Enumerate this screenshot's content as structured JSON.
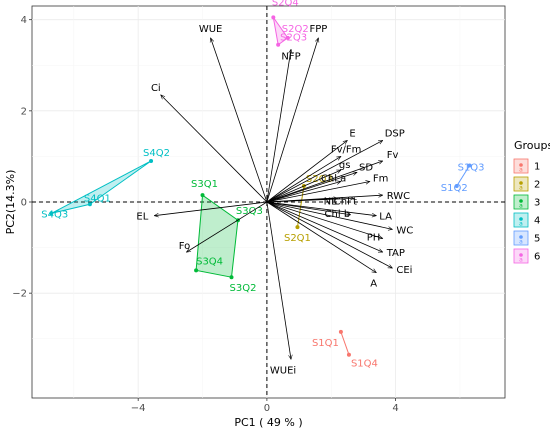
{
  "chart_data": {
    "type": "scatter",
    "subtype": "pca-biplot",
    "xlabel": "PC1 ( 49 % )",
    "ylabel": "PC2(14.3%)",
    "xlim": [
      -7.3,
      7.4
    ],
    "ylim": [
      -4.3,
      4.3
    ],
    "xticks": [
      -4,
      0,
      4
    ],
    "yticks": [
      -2,
      0,
      2,
      4
    ],
    "grid": true,
    "reference_lines": {
      "x": 0,
      "y": 0,
      "style": "dashed"
    },
    "legend": {
      "title": "Groups",
      "position": "right",
      "entries": [
        "1",
        "2",
        "3",
        "4",
        "5",
        "6"
      ]
    },
    "groups": [
      {
        "name": "1",
        "color": "#F8766D",
        "points": [
          {
            "label": "S1Q1",
            "x": 2.3,
            "y": -2.85
          },
          {
            "label": "S1Q4",
            "x": 2.55,
            "y": -3.35
          }
        ]
      },
      {
        "name": "2",
        "color": "#B79F00",
        "points": [
          {
            "label": "S2Q1",
            "x": 0.95,
            "y": -0.55
          },
          {
            "label": "S2Q3",
            "x": 1.15,
            "y": 0.35
          }
        ]
      },
      {
        "name": "3",
        "color": "#00BA38",
        "points": [
          {
            "label": "S3Q1",
            "x": -2.0,
            "y": 0.15
          },
          {
            "label": "S3Q3",
            "x": -0.9,
            "y": -0.4
          },
          {
            "label": "S3Q4",
            "x": -2.2,
            "y": -1.5
          },
          {
            "label": "S3Q2",
            "x": -1.1,
            "y": -1.65
          }
        ]
      },
      {
        "name": "4",
        "color": "#00BFC4",
        "points": [
          {
            "label": "S4Q2",
            "x": -3.6,
            "y": 0.9
          },
          {
            "label": "S4Q1",
            "x": -5.5,
            "y": -0.05
          },
          {
            "label": "S4Q3",
            "x": -6.7,
            "y": -0.25
          }
        ]
      },
      {
        "name": "5",
        "color": "#619CFF",
        "points": [
          {
            "label": "S1Q3",
            "x": 6.3,
            "y": 0.8
          },
          {
            "label": "S1Q2",
            "x": 5.9,
            "y": 0.35
          }
        ]
      },
      {
        "name": "6",
        "color": "#F564E3",
        "points": [
          {
            "label": "S2Q4",
            "x": 0.2,
            "y": 4.05
          },
          {
            "label": "S2Q2",
            "x": 0.65,
            "y": 3.6
          },
          {
            "label": "S2Q3",
            "x": 0.35,
            "y": 3.45
          }
        ]
      }
    ],
    "variables": [
      {
        "label": "WUE",
        "x": -1.75,
        "y": 3.6
      },
      {
        "label": "FPP",
        "x": 1.6,
        "y": 3.6
      },
      {
        "label": "NFP",
        "x": 0.75,
        "y": 3.35
      },
      {
        "label": "Ci",
        "x": -3.3,
        "y": 2.35
      },
      {
        "label": "EL",
        "x": -3.5,
        "y": -0.3
      },
      {
        "label": "Fo",
        "x": -2.5,
        "y": -1.1
      },
      {
        "label": "WUEi",
        "x": 0.75,
        "y": -3.45
      },
      {
        "label": "E",
        "x": 2.5,
        "y": 1.35
      },
      {
        "label": "DSP",
        "x": 3.6,
        "y": 1.35
      },
      {
        "label": "Fv/Fm",
        "x": 2.3,
        "y": 1.0
      },
      {
        "label": "Fv",
        "x": 3.6,
        "y": 0.9
      },
      {
        "label": "gs",
        "x": 2.3,
        "y": 0.7
      },
      {
        "label": "SD",
        "x": 2.8,
        "y": 0.65
      },
      {
        "label": "Fm",
        "x": 3.2,
        "y": 0.45
      },
      {
        "label": "Chl a",
        "x": 2.3,
        "y": 0.45
      },
      {
        "label": "RWC",
        "x": 3.6,
        "y": 0.15
      },
      {
        "label": "NL",
        "x": 2.2,
        "y": 0.08
      },
      {
        "label": "Chl t",
        "x": 2.7,
        "y": 0.08
      },
      {
        "label": "LA",
        "x": 3.4,
        "y": -0.3
      },
      {
        "label": "Chl b",
        "x": 2.6,
        "y": -0.28
      },
      {
        "label": "WC",
        "x": 3.9,
        "y": -0.6
      },
      {
        "label": "PH",
        "x": 3.6,
        "y": -0.8
      },
      {
        "label": "TAP",
        "x": 3.6,
        "y": -1.1
      },
      {
        "label": "CEi",
        "x": 3.9,
        "y": -1.45
      },
      {
        "label": "A",
        "x": 3.4,
        "y": -1.55
      }
    ]
  }
}
